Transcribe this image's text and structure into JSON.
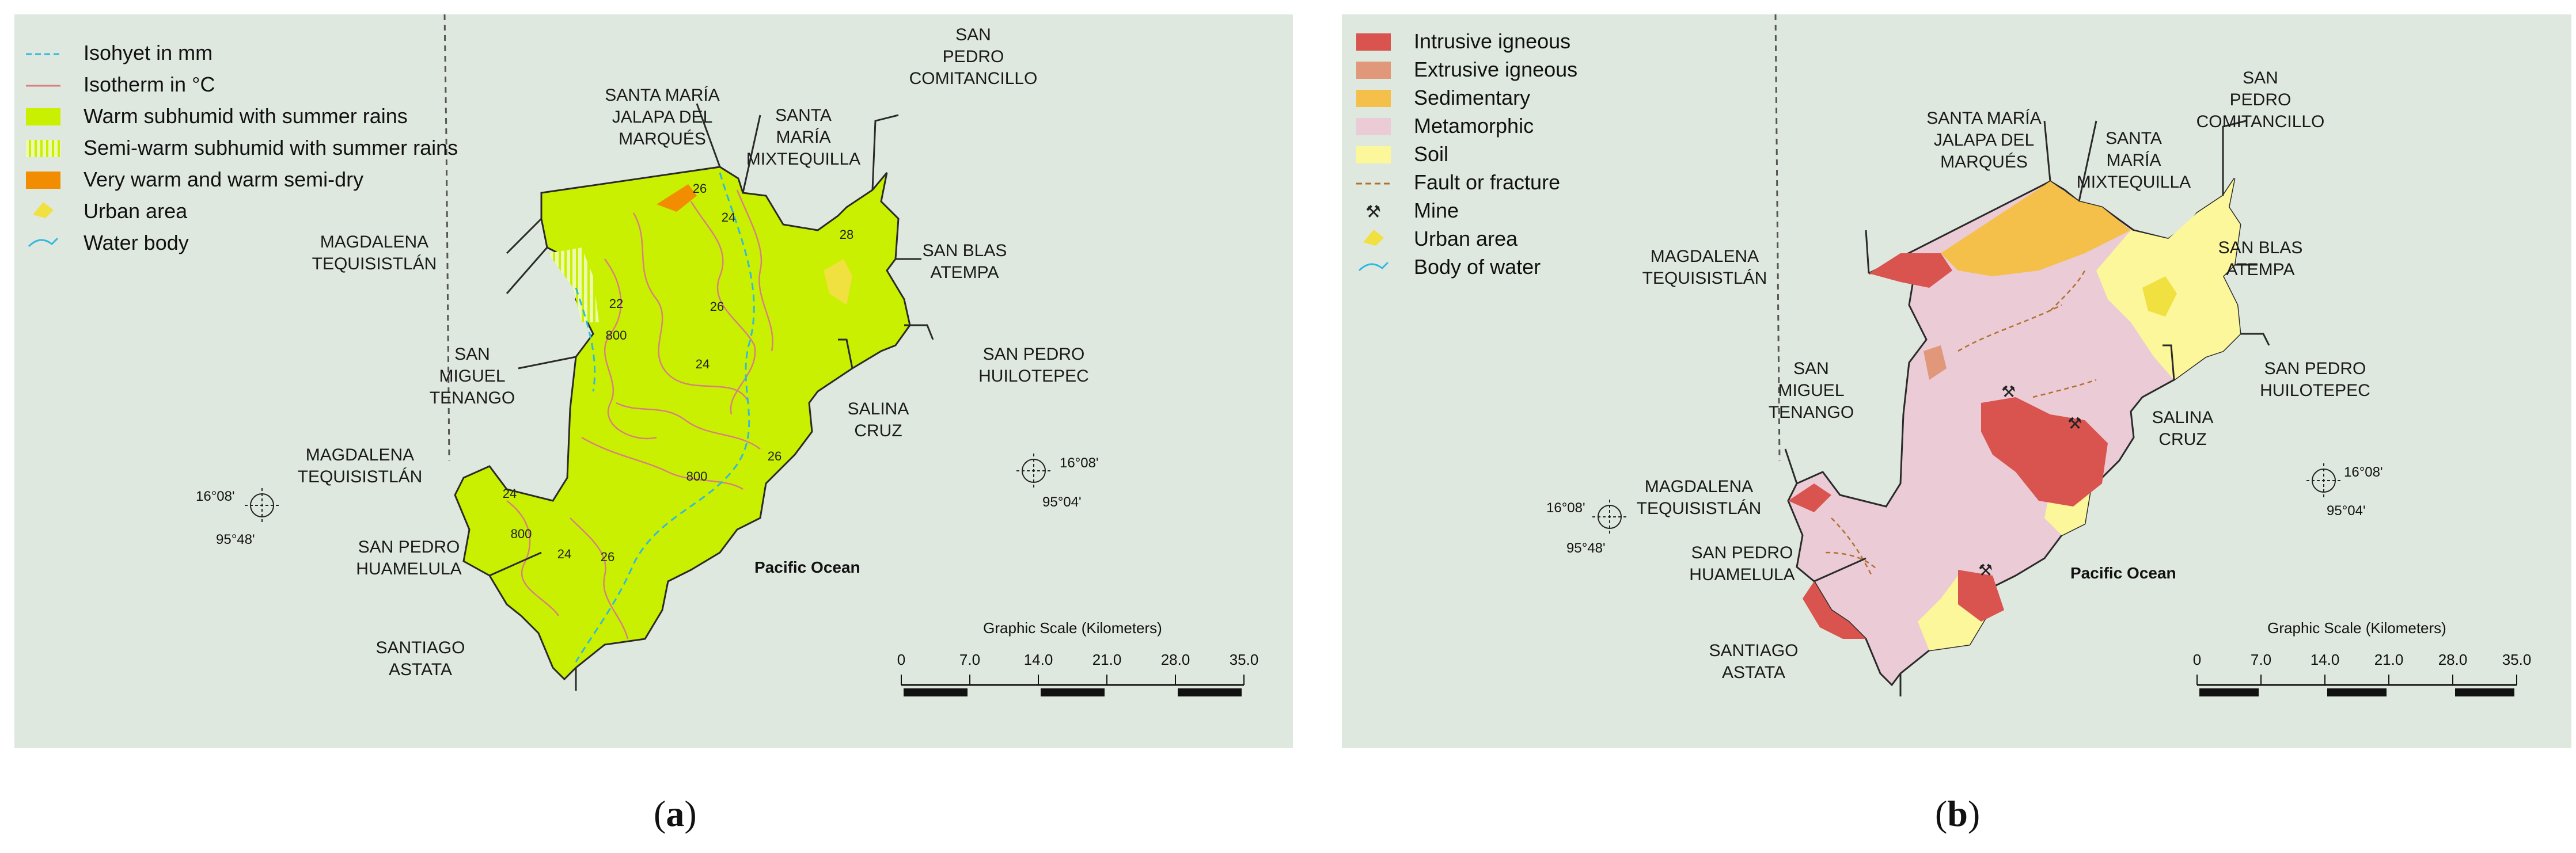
{
  "panel_a": {
    "caption_letter": "a",
    "legend": [
      {
        "label": "Isohyet in mm",
        "symbol": "dashed-line",
        "color": "#33b8e0"
      },
      {
        "label": "Isotherm in °C",
        "symbol": "line",
        "color": "#d98080"
      },
      {
        "label": "Warm subhumid with summer rains",
        "symbol": "fill",
        "color": "#c8f000"
      },
      {
        "label": "Semi-warm subhumid with summer rains",
        "symbol": "hatch",
        "color": "#d8f56a"
      },
      {
        "label": "Very warm and warm semi-dry",
        "symbol": "fill",
        "color": "#f28c00"
      },
      {
        "label": "Urban area",
        "symbol": "urban-icon",
        "color": "#f0e040"
      },
      {
        "label": "Water body",
        "symbol": "water-icon",
        "color": "#33b8e0"
      }
    ],
    "places": [
      {
        "lines": [
          "SAN",
          "PEDRO",
          "COMITANCILLO"
        ]
      },
      {
        "lines": [
          "SANTA MARÍA",
          "JALAPA DEL",
          "MARQUÉS"
        ]
      },
      {
        "lines": [
          "SANTA",
          "MARÍA",
          "MIXTEQUILLA"
        ]
      },
      {
        "lines": [
          "SAN BLAS",
          "ATEMPA"
        ]
      },
      {
        "lines": [
          "MAGDALENA",
          "TEQUISISTLÁN"
        ]
      },
      {
        "lines": [
          "SAN PEDRO",
          "HUILOTEPEC"
        ]
      },
      {
        "lines": [
          "SAN",
          "MIGUEL",
          "TENANGO"
        ]
      },
      {
        "lines": [
          "SALINA",
          "CRUZ"
        ]
      },
      {
        "lines": [
          "MAGDALENA",
          "TEQUISISTLÁN"
        ]
      },
      {
        "lines": [
          "SAN PEDRO",
          "HUAMELULA"
        ]
      },
      {
        "lines": [
          "SANTIAGO",
          "ASTATA"
        ]
      }
    ],
    "ocean_label": "Pacific Ocean",
    "isolines": [
      "26",
      "24",
      "28",
      "22",
      "26",
      "800",
      "24",
      "26",
      "800",
      "24",
      "800",
      "24",
      "26"
    ],
    "coord_west": {
      "lat": "16°08'",
      "lon": "95°48'"
    },
    "coord_east": {
      "lat": "16°08'",
      "lon": "95°04'"
    },
    "scale": {
      "title": "Graphic Scale (Kilometers)",
      "ticks": [
        "0",
        "7.0",
        "14.0",
        "21.0",
        "28.0",
        "35.0"
      ]
    }
  },
  "panel_b": {
    "caption_letter": "b",
    "legend": [
      {
        "label": "Intrusive igneous",
        "symbol": "fill",
        "color": "#d9534f"
      },
      {
        "label": "Extrusive igneous",
        "symbol": "fill",
        "color": "#e0977a"
      },
      {
        "label": "Sedimentary",
        "symbol": "fill",
        "color": "#f5c04a"
      },
      {
        "label": "Metamorphic",
        "symbol": "fill",
        "color": "#eacbd6"
      },
      {
        "label": "Soil",
        "symbol": "fill",
        "color": "#fbf79a"
      },
      {
        "label": "Fault or fracture",
        "symbol": "dashed-line",
        "color": "#b07030"
      },
      {
        "label": "Mine",
        "symbol": "mine-icon",
        "color": "#222222"
      },
      {
        "label": "Urban area",
        "symbol": "urban-icon",
        "color": "#f0e040"
      },
      {
        "label": "Body of water",
        "symbol": "water-icon",
        "color": "#33b8e0"
      }
    ],
    "places": [
      {
        "lines": [
          "SAN",
          "PEDRO",
          "COMITANCILLO"
        ]
      },
      {
        "lines": [
          "SANTA MARÍA",
          "JALAPA DEL",
          "MARQUÉS"
        ]
      },
      {
        "lines": [
          "SANTA",
          "MARÍA",
          "MIXTEQUILLA"
        ]
      },
      {
        "lines": [
          "SAN BLAS",
          "ATEMPA"
        ]
      },
      {
        "lines": [
          "MAGDALENA",
          "TEQUISISTLÁN"
        ]
      },
      {
        "lines": [
          "SAN PEDRO",
          "HUILOTEPEC"
        ]
      },
      {
        "lines": [
          "SAN",
          "MIGUEL",
          "TENANGO"
        ]
      },
      {
        "lines": [
          "SALINA",
          "CRUZ"
        ]
      },
      {
        "lines": [
          "MAGDALENA",
          "TEQUISISTLÁN"
        ]
      },
      {
        "lines": [
          "SAN PEDRO",
          "HUAMELULA"
        ]
      },
      {
        "lines": [
          "SANTIAGO",
          "ASTATA"
        ]
      }
    ],
    "ocean_label": "Pacific Ocean",
    "coord_west": {
      "lat": "16°08'",
      "lon": "95°48'"
    },
    "coord_east": {
      "lat": "16°08'",
      "lon": "95°04'"
    },
    "scale": {
      "title": "Graphic Scale (Kilometers)",
      "ticks": [
        "0",
        "7.0",
        "14.0",
        "21.0",
        "28.0",
        "35.0"
      ]
    }
  }
}
